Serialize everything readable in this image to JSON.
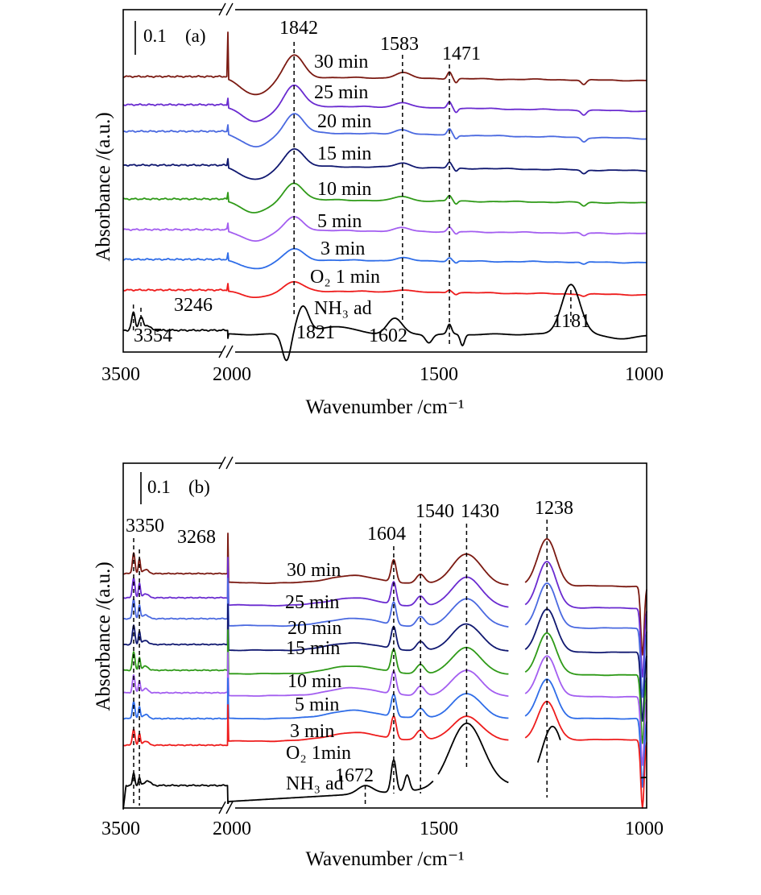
{
  "panels": [
    {
      "id": "a",
      "panel_label": "(a)",
      "scale_bar": "0.1",
      "xlabel": "Wavenumber /cm⁻¹",
      "ylabel": "Absorbance /(a.u.)",
      "x_ticks": [
        "3500",
        "2000",
        "1500",
        "1000"
      ],
      "time_labels": [
        "30 min",
        "25 min",
        "20 min",
        "15 min",
        "10 min",
        "5 min",
        "3 min",
        "O₂ 1 min",
        "NH₃ ad"
      ],
      "peak_labels": [
        "1842",
        "1583",
        "1471",
        "3246",
        "3354",
        "1821",
        "1602",
        "1181"
      ]
    },
    {
      "id": "b",
      "panel_label": "(b)",
      "scale_bar": "0.1",
      "xlabel": "Wavenumber /cm⁻¹",
      "ylabel": "Absorbance /(a.u.)",
      "x_ticks": [
        "3500",
        "2000",
        "1500",
        "1000"
      ],
      "time_labels": [
        "30 min",
        "25 min",
        "20 min",
        "15 min",
        "10 min",
        "5 min",
        "3 min",
        "O₂ 1min",
        "NH₃ ad"
      ],
      "peak_labels": [
        "3350",
        "3268",
        "1604",
        "1540",
        "1430",
        "1238",
        "1672"
      ]
    }
  ],
  "colors": {
    "30 min": "#7b1a12",
    "25 min": "#6a2bd0",
    "20 min": "#4a69e0",
    "15 min": "#101870",
    "10 min": "#2f9a18",
    "5 min": "#a35ef0",
    "3 min": "#2f6de8",
    "O2 1 min": "#ee1c1c",
    "NH3 ad": "#000000"
  },
  "chart_data": [
    {
      "type": "line",
      "panel": "a",
      "x_axis": "wavenumber (cm-1), broken axis: 3500-2000 then 2000-1000",
      "xlim": [
        3500,
        1000
      ],
      "y_scale_bar_au": 0.1,
      "series_order_top_to_bottom": [
        "30 min",
        "25 min",
        "20 min",
        "15 min",
        "10 min",
        "5 min",
        "3 min",
        "O2 1 min",
        "NH3 ad"
      ],
      "peaks": {
        "adsorbed_series": [
          1842,
          1583,
          1471
        ],
        "NH3_ad": [
          3354,
          3246,
          1821,
          1602,
          1181
        ]
      }
    },
    {
      "type": "line",
      "panel": "b",
      "x_axis": "wavenumber (cm-1), broken axis: 3500-2000 then 2000-1000",
      "xlim": [
        3500,
        1000
      ],
      "y_scale_bar_au": 0.1,
      "series_order_top_to_bottom": [
        "30 min",
        "25 min",
        "20 min",
        "15 min",
        "10 min",
        "5 min",
        "3 min",
        "O2 1min",
        "NH3 ad"
      ],
      "peaks": {
        "adsorbed_series": [
          3350,
          3268,
          1604,
          1540,
          1430,
          1238
        ],
        "NH3_ad": [
          1672
        ]
      }
    }
  ]
}
